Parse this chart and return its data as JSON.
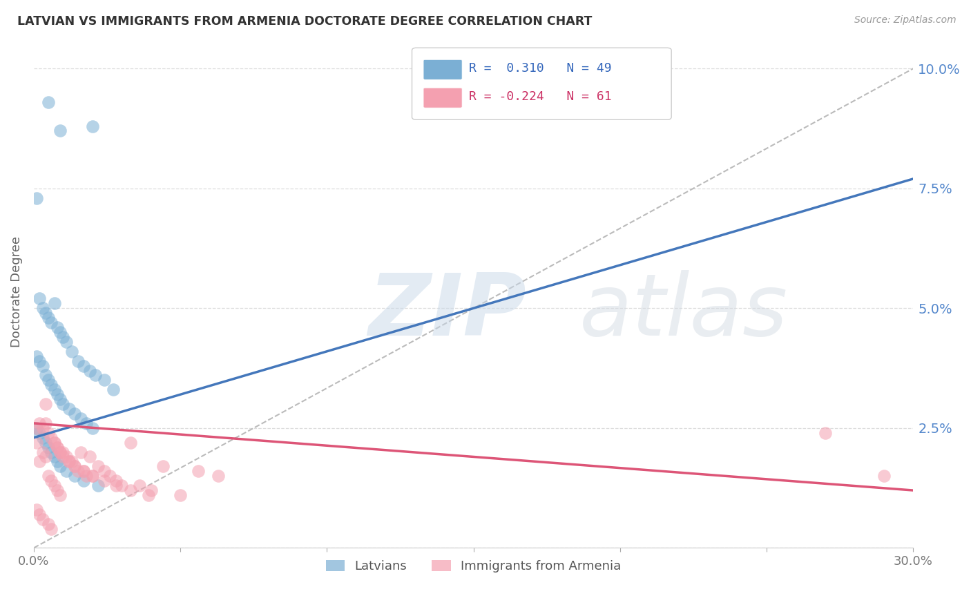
{
  "title": "LATVIAN VS IMMIGRANTS FROM ARMENIA DOCTORATE DEGREE CORRELATION CHART",
  "source": "Source: ZipAtlas.com",
  "ylabel": "Doctorate Degree",
  "ytick_labels": [
    "",
    "2.5%",
    "5.0%",
    "7.5%",
    "10.0%"
  ],
  "ytick_values": [
    0.0,
    0.025,
    0.05,
    0.075,
    0.1
  ],
  "xlim": [
    0.0,
    0.3
  ],
  "ylim": [
    0.0,
    0.107
  ],
  "legend_latvians": "Latvians",
  "legend_armenians": "Immigrants from Armenia",
  "R_latvians": 0.31,
  "N_latvians": 49,
  "R_armenians": -0.224,
  "N_armenians": 61,
  "blue_color": "#7BAFD4",
  "pink_color": "#F4A0B0",
  "blue_line_color": "#4477BB",
  "pink_line_color": "#DD5577",
  "dashed_line_color": "#BBBBBB",
  "lat_trend_x": [
    0.0,
    0.3
  ],
  "lat_trend_y": [
    0.023,
    0.077
  ],
  "arm_trend_x": [
    0.0,
    0.3
  ],
  "arm_trend_y": [
    0.026,
    0.012
  ],
  "latvians_x": [
    0.005,
    0.009,
    0.02,
    0.001,
    0.002,
    0.003,
    0.004,
    0.005,
    0.006,
    0.007,
    0.008,
    0.009,
    0.01,
    0.011,
    0.013,
    0.015,
    0.017,
    0.019,
    0.021,
    0.024,
    0.027,
    0.001,
    0.002,
    0.003,
    0.004,
    0.005,
    0.006,
    0.007,
    0.008,
    0.009,
    0.01,
    0.012,
    0.014,
    0.016,
    0.018,
    0.02,
    0.001,
    0.002,
    0.003,
    0.004,
    0.005,
    0.006,
    0.007,
    0.008,
    0.009,
    0.011,
    0.014,
    0.017,
    0.022
  ],
  "latvians_y": [
    0.093,
    0.087,
    0.088,
    0.073,
    0.052,
    0.05,
    0.049,
    0.048,
    0.047,
    0.051,
    0.046,
    0.045,
    0.044,
    0.043,
    0.041,
    0.039,
    0.038,
    0.037,
    0.036,
    0.035,
    0.033,
    0.04,
    0.039,
    0.038,
    0.036,
    0.035,
    0.034,
    0.033,
    0.032,
    0.031,
    0.03,
    0.029,
    0.028,
    0.027,
    0.026,
    0.025,
    0.025,
    0.024,
    0.023,
    0.022,
    0.021,
    0.02,
    0.019,
    0.018,
    0.017,
    0.016,
    0.015,
    0.014,
    0.013
  ],
  "armenians_x": [
    0.001,
    0.001,
    0.002,
    0.002,
    0.003,
    0.003,
    0.004,
    0.004,
    0.005,
    0.005,
    0.006,
    0.006,
    0.007,
    0.007,
    0.008,
    0.008,
    0.009,
    0.009,
    0.01,
    0.011,
    0.012,
    0.013,
    0.014,
    0.015,
    0.016,
    0.017,
    0.018,
    0.019,
    0.02,
    0.022,
    0.024,
    0.026,
    0.028,
    0.03,
    0.033,
    0.036,
    0.04,
    0.044,
    0.05,
    0.056,
    0.063,
    0.001,
    0.002,
    0.003,
    0.004,
    0.005,
    0.006,
    0.007,
    0.008,
    0.009,
    0.01,
    0.012,
    0.014,
    0.017,
    0.02,
    0.024,
    0.028,
    0.033,
    0.039,
    0.27,
    0.29
  ],
  "armenians_y": [
    0.025,
    0.022,
    0.026,
    0.018,
    0.025,
    0.02,
    0.026,
    0.019,
    0.024,
    0.015,
    0.023,
    0.014,
    0.022,
    0.013,
    0.021,
    0.012,
    0.02,
    0.011,
    0.02,
    0.019,
    0.018,
    0.018,
    0.017,
    0.016,
    0.02,
    0.016,
    0.015,
    0.019,
    0.015,
    0.017,
    0.016,
    0.015,
    0.014,
    0.013,
    0.022,
    0.013,
    0.012,
    0.017,
    0.011,
    0.016,
    0.015,
    0.008,
    0.007,
    0.006,
    0.03,
    0.005,
    0.004,
    0.022,
    0.021,
    0.02,
    0.019,
    0.018,
    0.017,
    0.016,
    0.015,
    0.014,
    0.013,
    0.012,
    0.011,
    0.024,
    0.015
  ]
}
